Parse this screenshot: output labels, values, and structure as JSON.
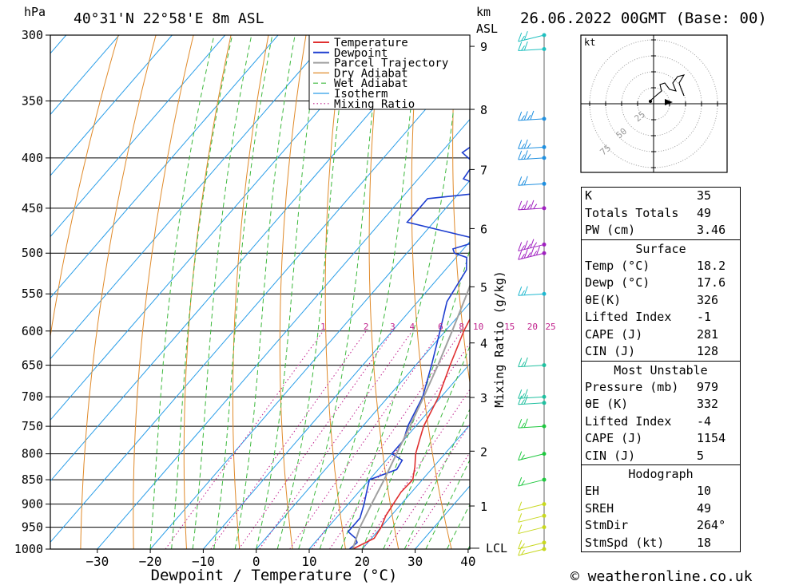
{
  "header": {
    "pressure_unit": "hPa",
    "location": "40°31'N  22°58'E  8m  ASL",
    "km_unit": "km",
    "asl_unit": "ASL",
    "datetime": "26.06.2022  00GMT  (Base: 00)"
  },
  "footer": {
    "credit": "© weatheronline.co.uk"
  },
  "hodograph": {
    "unit": "kt",
    "ring_labels": [
      "25",
      "50",
      "75"
    ]
  },
  "stats": {
    "general": [
      {
        "label": "K",
        "value": "35"
      },
      {
        "label": "Totals Totals",
        "value": "49"
      },
      {
        "label": "PW (cm)",
        "value": "3.46"
      }
    ],
    "surface_title": "Surface",
    "surface": [
      {
        "label": "Temp (°C)",
        "value": "18.2"
      },
      {
        "label": "Dewp (°C)",
        "value": "17.6"
      },
      {
        "label": "θE(K)",
        "value": "326"
      },
      {
        "label": "Lifted Index",
        "value": "-1"
      },
      {
        "label": "CAPE (J)",
        "value": "281"
      },
      {
        "label": "CIN (J)",
        "value": "128"
      }
    ],
    "mu_title": "Most Unstable",
    "most_unstable": [
      {
        "label": "Pressure (mb)",
        "value": "979"
      },
      {
        "label": "θE (K)",
        "value": "332"
      },
      {
        "label": "Lifted Index",
        "value": "-4"
      },
      {
        "label": "CAPE (J)",
        "value": "1154"
      },
      {
        "label": "CIN (J)",
        "value": "5"
      }
    ],
    "hodo_title": "Hodograph",
    "hodo": [
      {
        "label": "EH",
        "value": "10"
      },
      {
        "label": "SREH",
        "value": "49"
      },
      {
        "label": "StmDir",
        "value": "264°"
      },
      {
        "label": "StmSpd (kt)",
        "value": "18"
      }
    ]
  },
  "chart_data": {
    "type": "line",
    "title": "",
    "xlabel": "Dewpoint / Temperature (°C)",
    "ylabel": "hPa",
    "secondary_ylabel": "Mixing Ratio (g/kg)",
    "x_ticks": [
      -30,
      -20,
      -10,
      0,
      10,
      20,
      30,
      40
    ],
    "x_range": [
      -40,
      40
    ],
    "pressure_levels": [
      300,
      350,
      400,
      450,
      500,
      550,
      600,
      650,
      700,
      750,
      800,
      850,
      900,
      950,
      1000
    ],
    "km_ticks": [
      {
        "km": "1",
        "p": 904
      },
      {
        "km": "2",
        "p": 795
      },
      {
        "km": "3",
        "p": 701
      },
      {
        "km": "4",
        "p": 617
      },
      {
        "km": "5",
        "p": 541
      },
      {
        "km": "6",
        "p": 472
      },
      {
        "km": "7",
        "p": 411
      },
      {
        "km": "8",
        "p": 357
      },
      {
        "km": "9",
        "p": 308
      }
    ],
    "lcl_label": "LCL",
    "lcl_pressure": 998,
    "mixing_ratio_labels": [
      "1",
      "2",
      "3",
      "4",
      "6",
      "8",
      "10",
      "15",
      "20",
      "25"
    ],
    "legend": [
      "Temperature",
      "Dewpoint",
      "Parcel Trajectory",
      "Dry Adiabat",
      "Wet Adiabat",
      "Isotherm",
      "Mixing Ratio"
    ],
    "colors": {
      "temperature": "#e03030",
      "dewpoint": "#1f3fd0",
      "parcel": "#a0a0a0",
      "dry_adiabat": "#e08a2a",
      "wet_adiabat": "#3cb83c",
      "isotherm": "#2a9ee8",
      "mixing_ratio": "#c0208c"
    },
    "series": [
      {
        "name": "Temperature",
        "points": [
          [
            1000,
            18.2
          ],
          [
            975,
            20.5
          ],
          [
            950,
            20.0
          ],
          [
            925,
            19.0
          ],
          [
            900,
            18.5
          ],
          [
            875,
            18.0
          ],
          [
            850,
            18.2
          ],
          [
            825,
            16.5
          ],
          [
            800,
            14.5
          ],
          [
            775,
            13.0
          ],
          [
            750,
            11.5
          ],
          [
            700,
            9.5
          ],
          [
            650,
            6.5
          ],
          [
            600,
            3.5
          ],
          [
            550,
            1.0
          ],
          [
            510,
            -3.0
          ],
          [
            490,
            -2.5
          ],
          [
            470,
            -4.5
          ],
          [
            450,
            -7.5
          ],
          [
            430,
            -10.5
          ],
          [
            410,
            -11.0
          ],
          [
            390,
            -13.0
          ],
          [
            370,
            -17.5
          ],
          [
            350,
            -21.5
          ],
          [
            330,
            -25.5
          ],
          [
            310,
            -29.5
          ],
          [
            300,
            -31.5
          ]
        ]
      },
      {
        "name": "Dewpoint",
        "points": [
          [
            1000,
            17.6
          ],
          [
            985,
            18.0
          ],
          [
            975,
            17.0
          ],
          [
            960,
            14.5
          ],
          [
            950,
            14.5
          ],
          [
            930,
            14.5
          ],
          [
            900,
            13.0
          ],
          [
            875,
            11.5
          ],
          [
            850,
            10.0
          ],
          [
            830,
            13.5
          ],
          [
            812,
            13.0
          ],
          [
            800,
            10.0
          ],
          [
            775,
            10.0
          ],
          [
            750,
            8.5
          ],
          [
            700,
            6.5
          ],
          [
            650,
            3.0
          ],
          [
            600,
            -1.0
          ],
          [
            560,
            -4.5
          ],
          [
            520,
            -6.0
          ],
          [
            505,
            -8.0
          ],
          [
            500,
            -11.0
          ],
          [
            495,
            -12.0
          ],
          [
            485,
            -8.0
          ],
          [
            465,
            -25.0
          ],
          [
            440,
            -25.0
          ],
          [
            435,
            -17.0
          ],
          [
            428,
            -16.5
          ],
          [
            420,
            -21.5
          ],
          [
            405,
            -22.0
          ],
          [
            395,
            -26.0
          ],
          [
            370,
            -23.0
          ],
          [
            350,
            -29.0
          ],
          [
            330,
            -33.0
          ],
          [
            315,
            -37.0
          ],
          [
            305,
            -38.0
          ],
          [
            300,
            -38.5
          ]
        ]
      },
      {
        "name": "Parcel Trajectory",
        "points": [
          [
            1000,
            18.2
          ],
          [
            950,
            16.0
          ],
          [
            900,
            14.4
          ],
          [
            850,
            12.8
          ],
          [
            800,
            10.9
          ],
          [
            750,
            8.9
          ],
          [
            700,
            6.7
          ],
          [
            650,
            4.2
          ],
          [
            600,
            1.3
          ],
          [
            550,
            -2.0
          ],
          [
            500,
            -5.8
          ],
          [
            450,
            -10.2
          ],
          [
            400,
            -15.5
          ],
          [
            350,
            -21.7
          ],
          [
            300,
            -29.2
          ]
        ]
      }
    ],
    "wind": [
      {
        "p": 1000,
        "dir": 230,
        "spd": 10
      },
      {
        "p": 985,
        "dir": 250,
        "spd": 10
      },
      {
        "p": 950,
        "dir": 210,
        "spd": 5
      },
      {
        "p": 925,
        "dir": 210,
        "spd": 5
      },
      {
        "p": 900,
        "dir": 240,
        "spd": 5
      },
      {
        "p": 850,
        "dir": 250,
        "spd": 10
      },
      {
        "p": 800,
        "dir": 250,
        "spd": 10
      },
      {
        "p": 750,
        "dir": 260,
        "spd": 15
      },
      {
        "p": 710,
        "dir": 280,
        "spd": 15
      },
      {
        "p": 700,
        "dir": 275,
        "spd": 15
      },
      {
        "p": 650,
        "dir": 270,
        "spd": 15
      },
      {
        "p": 550,
        "dir": 265,
        "spd": 15
      },
      {
        "p": 500,
        "dir": 250,
        "spd": 35
      },
      {
        "p": 490,
        "dir": 255,
        "spd": 30
      },
      {
        "p": 450,
        "dir": 260,
        "spd": 30
      },
      {
        "p": 425,
        "dir": 260,
        "spd": 15
      },
      {
        "p": 400,
        "dir": 265,
        "spd": 20
      },
      {
        "p": 390,
        "dir": 265,
        "spd": 20
      },
      {
        "p": 365,
        "dir": 270,
        "spd": 25
      },
      {
        "p": 310,
        "dir": 260,
        "spd": 15
      },
      {
        "p": 300,
        "dir": 255,
        "spd": 15
      }
    ]
  }
}
